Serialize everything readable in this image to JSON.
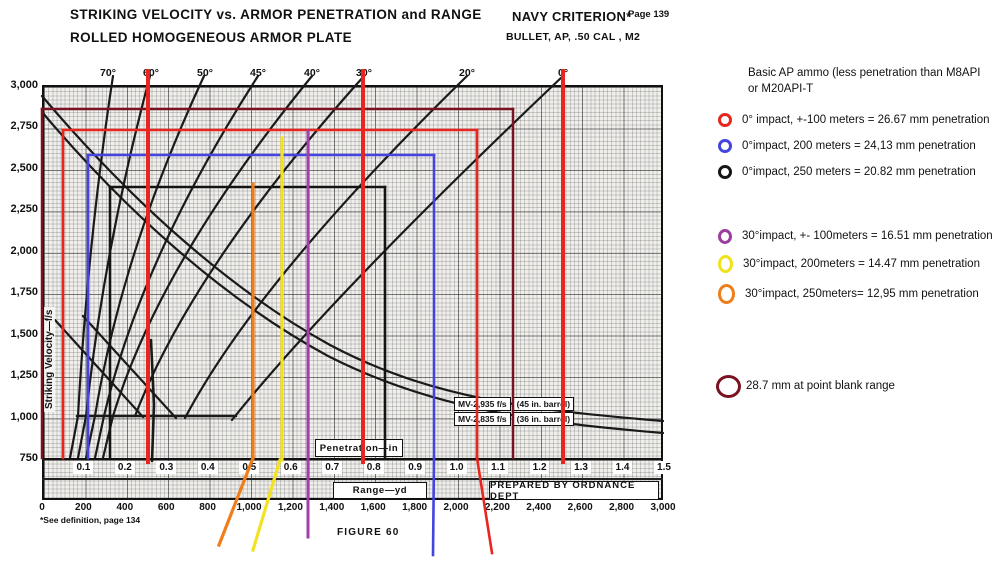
{
  "header": {
    "title_line1": "STRIKING VELOCITY vs. ARMOR PENETRATION and RANGE",
    "title_line2": "ROLLED HOMOGENEOUS ARMOR PLATE",
    "criterion": "NAVY CRITERION*",
    "page": "Page 139",
    "bullet": "BULLET, AP, .50 CAL , M2"
  },
  "chart": {
    "y_axis_label": "Striking Velocity—f/s",
    "y_ticks": [
      "3,000",
      "2,750",
      "2,500",
      "2,250",
      "2,000",
      "1,750",
      "1,500",
      "1,250",
      "1,000",
      "750"
    ],
    "angle_labels": [
      {
        "label": "70°",
        "x": 108
      },
      {
        "label": "60°",
        "x": 151
      },
      {
        "label": "50°",
        "x": 205
      },
      {
        "label": "45°",
        "x": 258
      },
      {
        "label": "40°",
        "x": 312
      },
      {
        "label": "30°",
        "x": 364
      },
      {
        "label": "20°",
        "x": 467
      },
      {
        "label": "0°",
        "x": 563
      }
    ],
    "penetration_scale": {
      "label": "Penetration—in",
      "ticks": [
        "0.1",
        "0.2",
        "0.3",
        "0.4",
        "0.5",
        "0.6",
        "0.7",
        "0.8",
        "0.9",
        "1.0",
        "1.1",
        "1.2",
        "1.3",
        "1.4",
        "1.5"
      ]
    },
    "range_scale": {
      "label": "Range—yd",
      "ticks": [
        "0",
        "200",
        "400",
        "600",
        "800",
        "1,000",
        "1,200",
        "1,400",
        "1,600",
        "1,800",
        "2,000",
        "2,200",
        "2,400",
        "2,600",
        "2,800",
        "3,000"
      ]
    },
    "mv_labels": [
      {
        "mv": "MV-2,935 f/s",
        "barrel": "(45 in. barrel)"
      },
      {
        "mv": "MV-2,835 f/s",
        "barrel": "(36 in. barrel)"
      }
    ],
    "prepared_by": "PREPARED BY ORDNANCE DEPT",
    "figure_caption": "FIGURE 60",
    "footnote": "*See definition, page 134"
  },
  "legend": {
    "header_line1": "Basic AP ammo (less penetration than M8API",
    "header_line2": "or M20API-T",
    "items": [
      {
        "ring_color": "#e8251f",
        "text": "0° impact, +-100 meters = 26.67 mm penetration"
      },
      {
        "ring_color": "#4444e0",
        "text": "0°impact, 200 meters = 24,13 mm penetration"
      },
      {
        "ring_color": "#151515",
        "text": "0°impact, 250 meters = 20.82 mm penetration"
      },
      {
        "ring_color": "#9b3f9e",
        "text": "30°impact, +- 100meters = 16.51 mm penetration"
      },
      {
        "ring_color": "#f0e21e",
        "text": "30°impact, 200meters = 14.47 mm penetration"
      },
      {
        "ring_color": "#ef7d1a",
        "text": "30°impact, 250meters= 12,95 mm  penetration"
      }
    ],
    "point_blank": {
      "ring_color": "#7a1222",
      "text": "28.7 mm at point blank range"
    }
  },
  "chart_data": {
    "type": "line",
    "title": "Striking Velocity vs. Armor Penetration and Range — Rolled Homogeneous Armor Plate, Bullet AP .50 cal M2 (Navy criterion)",
    "y_axis": {
      "label": "Striking Velocity—f/s",
      "min": 750,
      "max": 3000,
      "tick_step": 250
    },
    "x_axis_penetration": {
      "label": "Penetration—in",
      "min": 0,
      "max": 1.5,
      "tick_step": 0.1
    },
    "x_axis_range": {
      "label": "Range—yd",
      "min": 0,
      "max": 3000,
      "tick_step": 200
    },
    "grid": true,
    "obliquity_curves": [
      {
        "angle_deg": 70,
        "penetration_in_at_3000fs": 0.16
      },
      {
        "angle_deg": 60,
        "penetration_in_at_3000fs": 0.26
      },
      {
        "angle_deg": 50,
        "penetration_in_at_3000fs": 0.39
      },
      {
        "angle_deg": 45,
        "penetration_in_at_3000fs": 0.52
      },
      {
        "angle_deg": 40,
        "penetration_in_at_3000fs": 0.65
      },
      {
        "angle_deg": 30,
        "penetration_in_at_3000fs": 0.78
      },
      {
        "angle_deg": 20,
        "penetration_in_at_3000fs": 1.03
      },
      {
        "angle_deg": 0,
        "penetration_in_at_3000fs": 1.26
      }
    ],
    "muzzle_velocity_curves": [
      {
        "label": "MV-2,935 f/s (45 in. barrel)",
        "muzzle_velocity_fs": 2935
      },
      {
        "label": "MV-2,835 f/s (36 in. barrel)",
        "muzzle_velocity_fs": 2835
      }
    ],
    "overlay_annotations": [
      {
        "color": "red",
        "impact_deg": 0,
        "range": "+-100 meters",
        "penetration_mm": 26.67,
        "penetration_in": 1.05,
        "striking_velocity_fs_est": 2730
      },
      {
        "color": "blue",
        "impact_deg": 0,
        "range": "200 meters",
        "penetration_mm": 24.13,
        "penetration_in": 0.95,
        "striking_velocity_fs_est": 2580
      },
      {
        "color": "black",
        "impact_deg": 0,
        "range": "250 meters",
        "penetration_mm": 20.82,
        "penetration_in": 0.83,
        "striking_velocity_fs_est": 2390
      },
      {
        "color": "purple",
        "impact_deg": 30,
        "range": "+-100 meters",
        "penetration_mm": 16.51,
        "penetration_in": 0.64
      },
      {
        "color": "yellow",
        "impact_deg": 30,
        "range": "200 meters",
        "penetration_mm": 14.47,
        "penetration_in": 0.58
      },
      {
        "color": "orange",
        "impact_deg": 30,
        "range": "250 meters",
        "penetration_mm": 12.95,
        "penetration_in": 0.51
      },
      {
        "color": "dark-red",
        "impact_deg": 0,
        "range": "point blank",
        "penetration_mm": 28.7,
        "penetration_in": 1.13,
        "striking_velocity_fs_est": 2855
      }
    ]
  }
}
